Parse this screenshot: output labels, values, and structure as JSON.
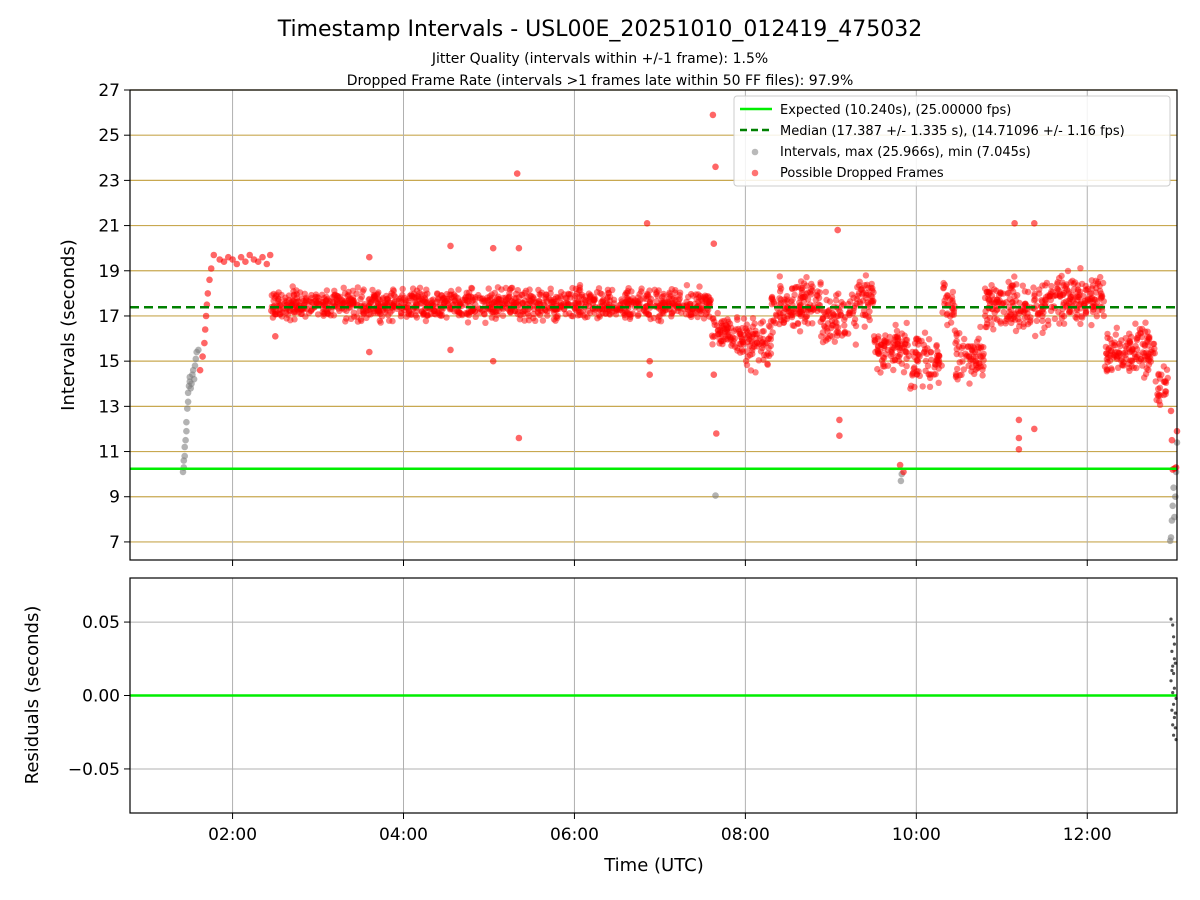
{
  "title": "Timestamp Intervals - USL00E_20251010_012419_475032",
  "subtitle_jitter": "Jitter Quality (intervals within +/-1 frame): 1.5%",
  "subtitle_dropped": "Dropped Frame Rate (intervals >1 frames late within 50 FF files): 97.9%",
  "colors": {
    "expected": "#00ee00",
    "median": "#008000",
    "dropped": "#ff0000",
    "intervals": "#808080",
    "hgrid": "#c8a850",
    "grid": "#b0b0b0"
  },
  "chart_data": [
    {
      "type": "scatter",
      "panel": "top",
      "xlabel": "",
      "ylabel": "Intervals (seconds)",
      "xlim_hours": [
        0.8,
        13.05
      ],
      "ylim": [
        6.2,
        27
      ],
      "yticks": [
        7,
        9,
        11,
        13,
        15,
        17,
        19,
        21,
        23,
        25,
        27
      ],
      "ytick_labels": [
        "7",
        "9",
        "11",
        "13",
        "15",
        "17",
        "19",
        "21",
        "23",
        "25",
        "27"
      ],
      "expected_interval": 10.24,
      "median_interval": 17.387,
      "legend": {
        "position": "top-right",
        "expected": "Expected (10.240s), (25.00000 fps)",
        "median": "Median (17.387 +/- 1.335 s), (14.71096 +/- 1.16 fps)",
        "intervals": "Intervals, max (25.966s), min (7.045s)",
        "dropped": "Possible Dropped Frames"
      },
      "series": [
        {
          "name": "Intervals",
          "color": "#808080",
          "points": [
            [
              1.42,
              10.1
            ],
            [
              1.43,
              10.3
            ],
            [
              1.43,
              10.6
            ],
            [
              1.44,
              10.8
            ],
            [
              1.44,
              11.2
            ],
            [
              1.45,
              11.5
            ],
            [
              1.46,
              11.9
            ],
            [
              1.46,
              12.3
            ],
            [
              1.47,
              12.9
            ],
            [
              1.48,
              13.2
            ],
            [
              1.48,
              13.6
            ],
            [
              1.49,
              13.9
            ],
            [
              1.5,
              14.1
            ],
            [
              1.5,
              14.3
            ],
            [
              1.51,
              13.8
            ],
            [
              1.52,
              14.0
            ],
            [
              1.53,
              14.4
            ],
            [
              1.54,
              14.6
            ],
            [
              1.55,
              14.2
            ],
            [
              1.56,
              14.8
            ],
            [
              1.57,
              15.1
            ],
            [
              1.58,
              15.4
            ],
            [
              1.6,
              15.5
            ],
            [
              7.65,
              9.05
            ],
            [
              9.82,
              9.7
            ],
            [
              9.83,
              10.0
            ],
            [
              12.97,
              7.05
            ],
            [
              12.98,
              7.2
            ],
            [
              12.99,
              7.95
            ],
            [
              13.0,
              8.6
            ],
            [
              13.01,
              9.4
            ],
            [
              13.02,
              8.1
            ],
            [
              13.03,
              9.0
            ],
            [
              13.04,
              10.1
            ],
            [
              13.05,
              11.4
            ]
          ]
        },
        {
          "name": "Possible Dropped Frames",
          "color": "#ff0000",
          "points": [
            [
              1.62,
              14.6
            ],
            [
              1.65,
              15.2
            ],
            [
              1.67,
              15.8
            ],
            [
              1.68,
              16.4
            ],
            [
              1.69,
              17.0
            ],
            [
              1.7,
              17.5
            ],
            [
              1.71,
              18.0
            ],
            [
              1.73,
              18.6
            ],
            [
              1.75,
              19.1
            ],
            [
              1.78,
              19.7
            ],
            [
              1.85,
              19.5
            ],
            [
              1.9,
              19.4
            ],
            [
              1.95,
              19.6
            ],
            [
              2.0,
              19.5
            ],
            [
              2.05,
              19.3
            ],
            [
              2.1,
              19.6
            ],
            [
              2.15,
              19.4
            ],
            [
              2.2,
              19.7
            ],
            [
              2.25,
              19.5
            ],
            [
              2.3,
              19.4
            ],
            [
              2.35,
              19.6
            ],
            [
              2.4,
              19.3
            ],
            [
              2.44,
              19.7
            ],
            [
              2.5,
              16.1
            ],
            [
              3.6,
              19.6
            ],
            [
              3.6,
              15.4
            ],
            [
              4.55,
              20.1
            ],
            [
              4.55,
              15.5
            ],
            [
              5.05,
              20.0
            ],
            [
              5.05,
              15.0
            ],
            [
              5.33,
              23.3
            ],
            [
              5.35,
              20.0
            ],
            [
              5.35,
              11.6
            ],
            [
              6.85,
              21.1
            ],
            [
              6.88,
              15.0
            ],
            [
              6.88,
              14.4
            ],
            [
              7.62,
              25.9
            ],
            [
              7.65,
              23.6
            ],
            [
              7.63,
              20.2
            ],
            [
              7.66,
              11.8
            ],
            [
              7.63,
              14.4
            ],
            [
              9.08,
              20.8
            ],
            [
              9.1,
              12.4
            ],
            [
              9.1,
              11.7
            ],
            [
              9.81,
              10.4
            ],
            [
              9.85,
              10.1
            ],
            [
              11.15,
              21.1
            ],
            [
              11.38,
              21.1
            ],
            [
              11.2,
              12.4
            ],
            [
              11.2,
              11.6
            ],
            [
              11.2,
              11.1
            ],
            [
              11.38,
              12.0
            ],
            [
              12.98,
              12.8
            ],
            [
              12.99,
              11.5
            ],
            [
              13.0,
              10.2
            ],
            [
              13.02,
              10.25
            ],
            [
              13.04,
              10.3
            ],
            [
              13.05,
              11.9
            ]
          ]
        }
      ]
    },
    {
      "type": "scatter",
      "panel": "bottom",
      "xlabel": "Time (UTC)",
      "ylabel": "Residuals (seconds)",
      "xlim_hours": [
        0.8,
        13.05
      ],
      "ylim": [
        -0.08,
        0.08
      ],
      "yticks": [
        -0.05,
        0.0,
        0.05
      ],
      "ytick_labels": [
        "−0.05",
        "0.00",
        "0.05"
      ],
      "xticks_hours": [
        2,
        4,
        6,
        8,
        10,
        12
      ],
      "xtick_labels": [
        "02:00",
        "04:00",
        "06:00",
        "08:00",
        "10:00",
        "12:00"
      ],
      "zero_line": 0.0,
      "series": [
        {
          "name": "Residuals",
          "color": "#505050",
          "points": [
            [
              12.98,
              0.052
            ],
            [
              13.0,
              0.048
            ],
            [
              13.01,
              0.04
            ],
            [
              12.99,
              0.03
            ],
            [
              13.02,
              0.025
            ],
            [
              13.0,
              0.02
            ],
            [
              13.03,
              0.022
            ],
            [
              13.01,
              0.015
            ],
            [
              12.98,
              0.01
            ],
            [
              13.02,
              0.005
            ],
            [
              13.0,
              0.002
            ],
            [
              13.04,
              -0.002
            ],
            [
              13.01,
              -0.006
            ],
            [
              12.99,
              -0.01
            ],
            [
              13.02,
              -0.015
            ],
            [
              13.0,
              -0.02
            ],
            [
              13.03,
              -0.022
            ],
            [
              13.01,
              -0.027
            ],
            [
              13.04,
              -0.03
            ],
            [
              13.02,
              0.035
            ],
            [
              12.99,
              0.017
            ],
            [
              13.03,
              -0.012
            ]
          ]
        }
      ]
    }
  ]
}
